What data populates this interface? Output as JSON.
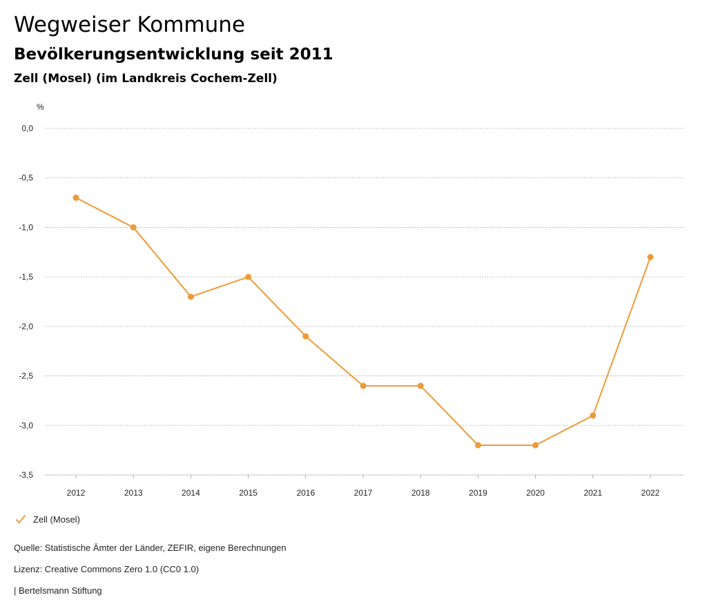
{
  "header": {
    "title": "Wegweiser Kommune",
    "subtitle": "Bevölkerungsentwicklung seit 2011",
    "region": "Zell (Mosel) (im Landkreis Cochem-Zell)"
  },
  "chart_data": {
    "type": "line",
    "ylabel": "%",
    "ylim": [
      -3.5,
      0.0
    ],
    "y_ticks": [
      "0,0",
      "-0,5",
      "-1,0",
      "-1,5",
      "-2,0",
      "-2,5",
      "-3,0",
      "-3,5"
    ],
    "y_tick_values": [
      0.0,
      -0.5,
      -1.0,
      -1.5,
      -2.0,
      -2.5,
      -3.0,
      -3.5
    ],
    "categories": [
      "2012",
      "2013",
      "2014",
      "2015",
      "2016",
      "2017",
      "2018",
      "2019",
      "2020",
      "2021",
      "2022"
    ],
    "series": [
      {
        "name": "Zell (Mosel)",
        "color": "#EE9A38",
        "values": [
          -0.7,
          -1.0,
          -1.7,
          -1.5,
          -2.1,
          -2.6,
          -2.6,
          -3.2,
          -3.2,
          -2.9,
          -1.3
        ]
      }
    ],
    "grid": true,
    "grid_style": "dotted",
    "legend_position": "bottom-left"
  },
  "legend": {
    "label": "Zell (Mosel)",
    "color": "#EE9A38"
  },
  "footer": {
    "source": "Quelle: Statistische Ämter der Länder, ZEFIR, eigene Berechnungen",
    "license": "Lizenz: Creative Commons Zero 1.0 (CC0 1.0)",
    "publisher": "| Bertelsmann Stiftung"
  }
}
